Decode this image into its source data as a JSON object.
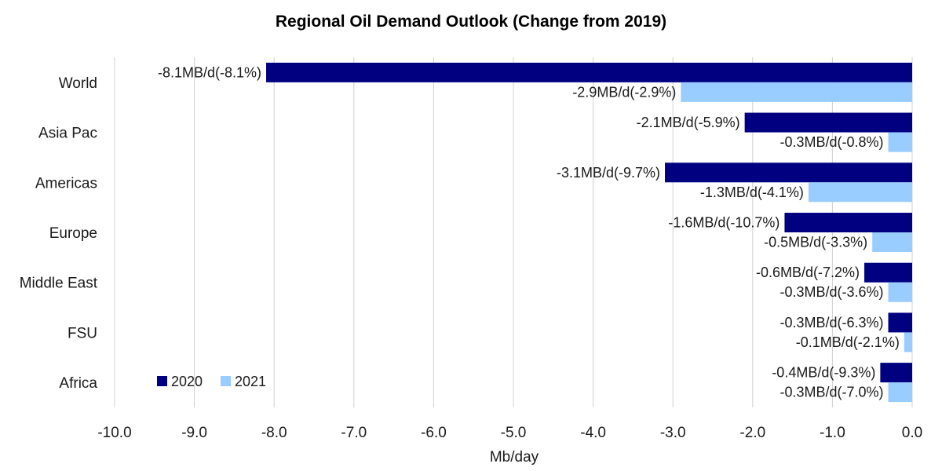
{
  "chart_data": {
    "type": "bar",
    "orientation": "horizontal",
    "title": "Regional Oil Demand Outlook (Change from 2019)",
    "xlabel": "Mb/day",
    "ylabel": "",
    "xlim": [
      -10.0,
      0.0
    ],
    "x_ticks": [
      "-10.0",
      "-9.0",
      "-8.0",
      "-7.0",
      "-6.0",
      "-5.0",
      "-4.0",
      "-3.0",
      "-2.0",
      "-1.0",
      "0.0"
    ],
    "grid": "vertical",
    "legend_position": "bottom-left",
    "categories": [
      "World",
      "Asia Pac",
      "Americas",
      "Europe",
      "Middle East",
      "FSU",
      "Africa"
    ],
    "series": [
      {
        "name": "2020",
        "color": "#000080",
        "values": [
          -8.1,
          -2.1,
          -3.1,
          -1.6,
          -0.6,
          -0.3,
          -0.4
        ],
        "labels": [
          "-8.1MB/d(-8.1%)",
          "-2.1MB/d(-5.9%)",
          "-3.1MB/d(-9.7%)",
          "-1.6MB/d(-10.7%)",
          "-0.6MB/d(-7.2%)",
          "-0.3MB/d(-6.3%)",
          "-0.4MB/d(-9.3%)"
        ]
      },
      {
        "name": "2021",
        "color": "#99CCFF",
        "values": [
          -2.9,
          -0.3,
          -1.3,
          -0.5,
          -0.3,
          -0.1,
          -0.3
        ],
        "labels": [
          "-2.9MB/d(-2.9%)",
          "-0.3MB/d(-0.8%)",
          "-1.3MB/d(-4.1%)",
          "-0.5MB/d(-3.3%)",
          "-0.3MB/d(-3.6%)",
          "-0.1MB/d(-2.1%)",
          "-0.3MB/d(-7.0%)"
        ]
      }
    ]
  }
}
